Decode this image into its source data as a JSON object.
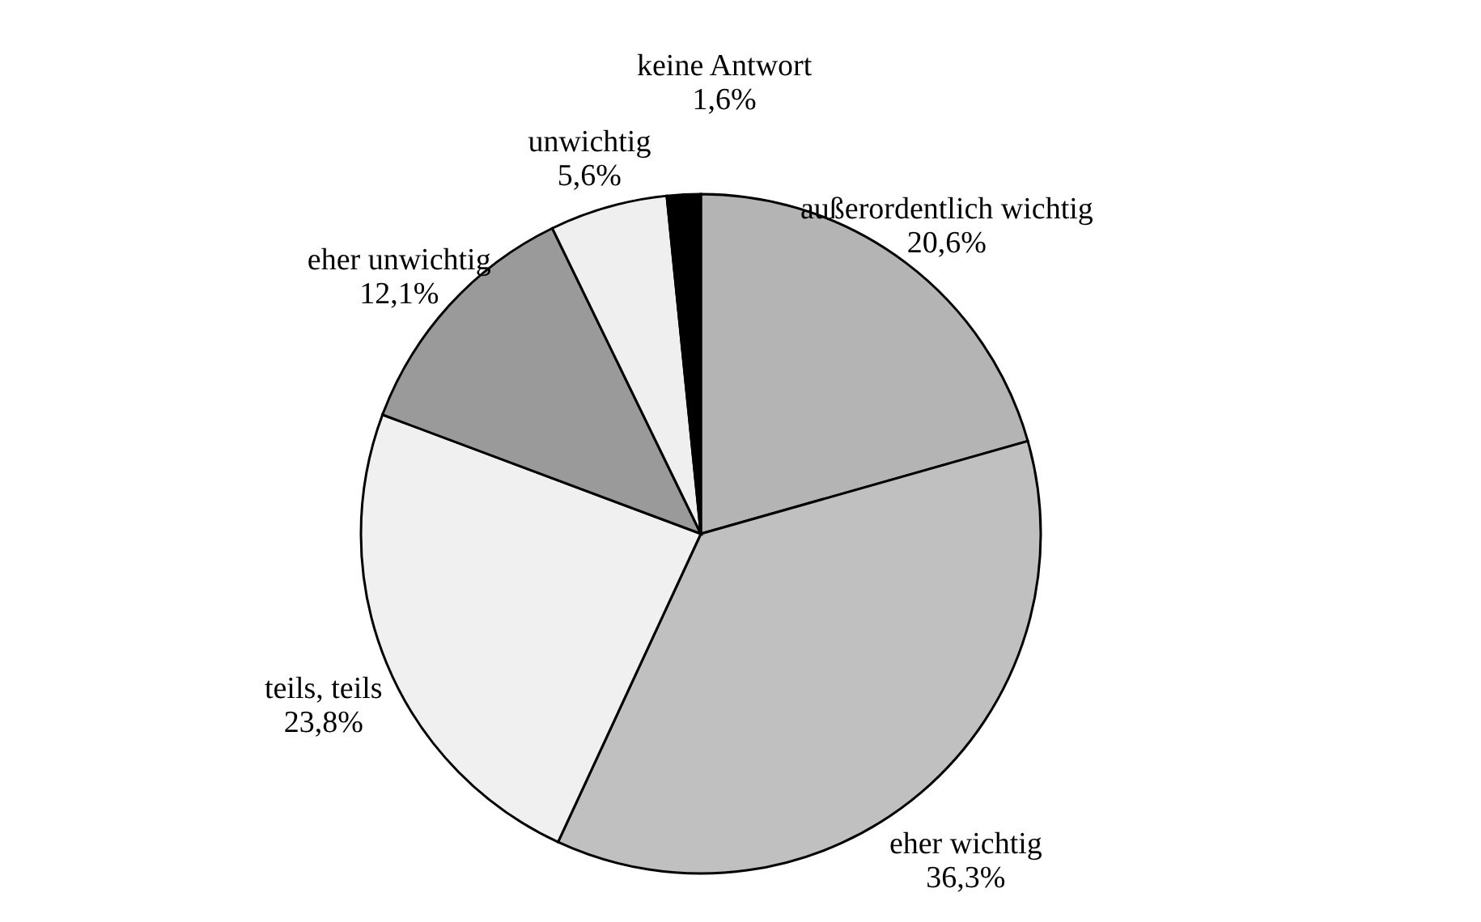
{
  "chart_data": {
    "type": "pie",
    "categories": [
      "außerordentlich wichtig",
      "eher wichtig",
      "teils, teils",
      "eher unwichtig",
      "unwichtig",
      "keine Antwort"
    ],
    "values": [
      20.6,
      36.3,
      23.8,
      12.1,
      5.6,
      1.6
    ],
    "value_labels": [
      "20,6%",
      "36,3%",
      "23,8%",
      "12,1%",
      "5,6%",
      "1,6%"
    ],
    "colors": [
      "#b4b4b4",
      "#c0c0c0",
      "#f0f0f0",
      "#9a9a9a",
      "#efefef",
      "#000000"
    ],
    "legend": false
  }
}
